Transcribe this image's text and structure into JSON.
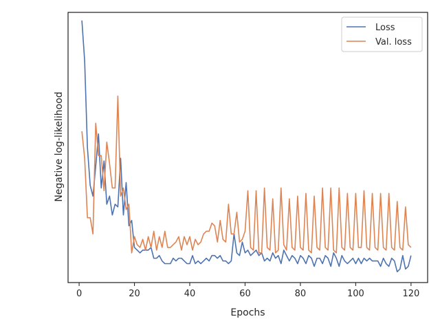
{
  "chart_data": {
    "type": "line",
    "title": "",
    "xlabel": "Epochs",
    "ylabel": "Negative log-likelihood",
    "xlim": [
      -4,
      126
    ],
    "ylim": [
      0,
      100
    ],
    "x_ticks": [
      0,
      20,
      40,
      60,
      80,
      100,
      120
    ],
    "x_tick_labels": [
      "0",
      "20",
      "40",
      "60",
      "80",
      "100",
      "120"
    ],
    "y_ticks": [],
    "grid": false,
    "legend_position": "top-right",
    "x": [
      1,
      2,
      3,
      4,
      5,
      6,
      7,
      8,
      9,
      10,
      11,
      12,
      13,
      14,
      15,
      16,
      17,
      18,
      19,
      20,
      21,
      22,
      23,
      24,
      25,
      26,
      27,
      28,
      29,
      30,
      31,
      32,
      33,
      34,
      35,
      36,
      37,
      38,
      39,
      40,
      41,
      42,
      43,
      44,
      45,
      46,
      47,
      48,
      49,
      50,
      51,
      52,
      53,
      54,
      55,
      56,
      57,
      58,
      59,
      60,
      61,
      62,
      63,
      64,
      65,
      66,
      67,
      68,
      69,
      70,
      71,
      72,
      73,
      74,
      75,
      76,
      77,
      78,
      79,
      80,
      81,
      82,
      83,
      84,
      85,
      86,
      87,
      88,
      89,
      90,
      91,
      92,
      93,
      94,
      95,
      96,
      97,
      98,
      99,
      100,
      101,
      102,
      103,
      104,
      105,
      106,
      107,
      108,
      109,
      110,
      111,
      112,
      113,
      114,
      115,
      116,
      117,
      118,
      119,
      120
    ],
    "series": [
      {
        "name": "Loss",
        "color": "#4c72b0",
        "values": [
          97,
          82,
          50,
          36,
          32,
          43,
          55,
          35,
          45,
          29,
          32,
          25,
          29,
          28,
          46,
          25,
          37,
          21,
          23,
          13,
          12,
          11,
          12,
          12,
          12,
          13,
          9,
          9,
          10,
          8,
          7,
          7,
          7,
          9,
          8,
          9,
          9,
          8,
          7,
          7,
          10,
          7,
          8,
          7,
          8,
          9,
          8,
          10,
          10,
          9,
          10,
          8,
          8,
          7,
          8,
          18,
          11,
          10,
          15,
          11,
          12,
          10,
          11,
          12,
          10,
          11,
          8,
          9,
          8,
          11,
          9,
          10,
          7,
          12,
          10,
          8,
          10,
          9,
          7,
          10,
          9,
          7,
          10,
          9,
          6,
          9,
          9,
          7,
          10,
          9,
          6,
          11,
          9,
          6,
          10,
          8,
          7,
          8,
          9,
          7,
          9,
          7,
          9,
          8,
          9,
          8,
          8,
          8,
          6,
          9,
          7,
          6,
          9,
          8,
          4,
          5,
          10,
          5,
          6,
          10
        ]
      },
      {
        "name": "Val. loss",
        "color": "#dd8452",
        "values": [
          56,
          46,
          24,
          24,
          18,
          59,
          47,
          47,
          34,
          52,
          44,
          35,
          35,
          69,
          32,
          35,
          27,
          29,
          11,
          17,
          14,
          13,
          16,
          12,
          17,
          13,
          19,
          12,
          17,
          13,
          19,
          13,
          13,
          14,
          15,
          17,
          12,
          17,
          14,
          17,
          12,
          16,
          14,
          15,
          18,
          19,
          19,
          22,
          21,
          15,
          23,
          16,
          15,
          29,
          18,
          18,
          26,
          15,
          16,
          19,
          34,
          13,
          12,
          34,
          11,
          11,
          35,
          13,
          12,
          31,
          11,
          12,
          35,
          14,
          12,
          31,
          13,
          12,
          32,
          13,
          12,
          33,
          12,
          11,
          32,
          13,
          12,
          35,
          13,
          12,
          35,
          12,
          11,
          35,
          13,
          12,
          33,
          13,
          12,
          33,
          13,
          13,
          34,
          13,
          12,
          33,
          13,
          12,
          33,
          13,
          12,
          33,
          13,
          12,
          30,
          13,
          12,
          28,
          14,
          13
        ]
      }
    ]
  }
}
